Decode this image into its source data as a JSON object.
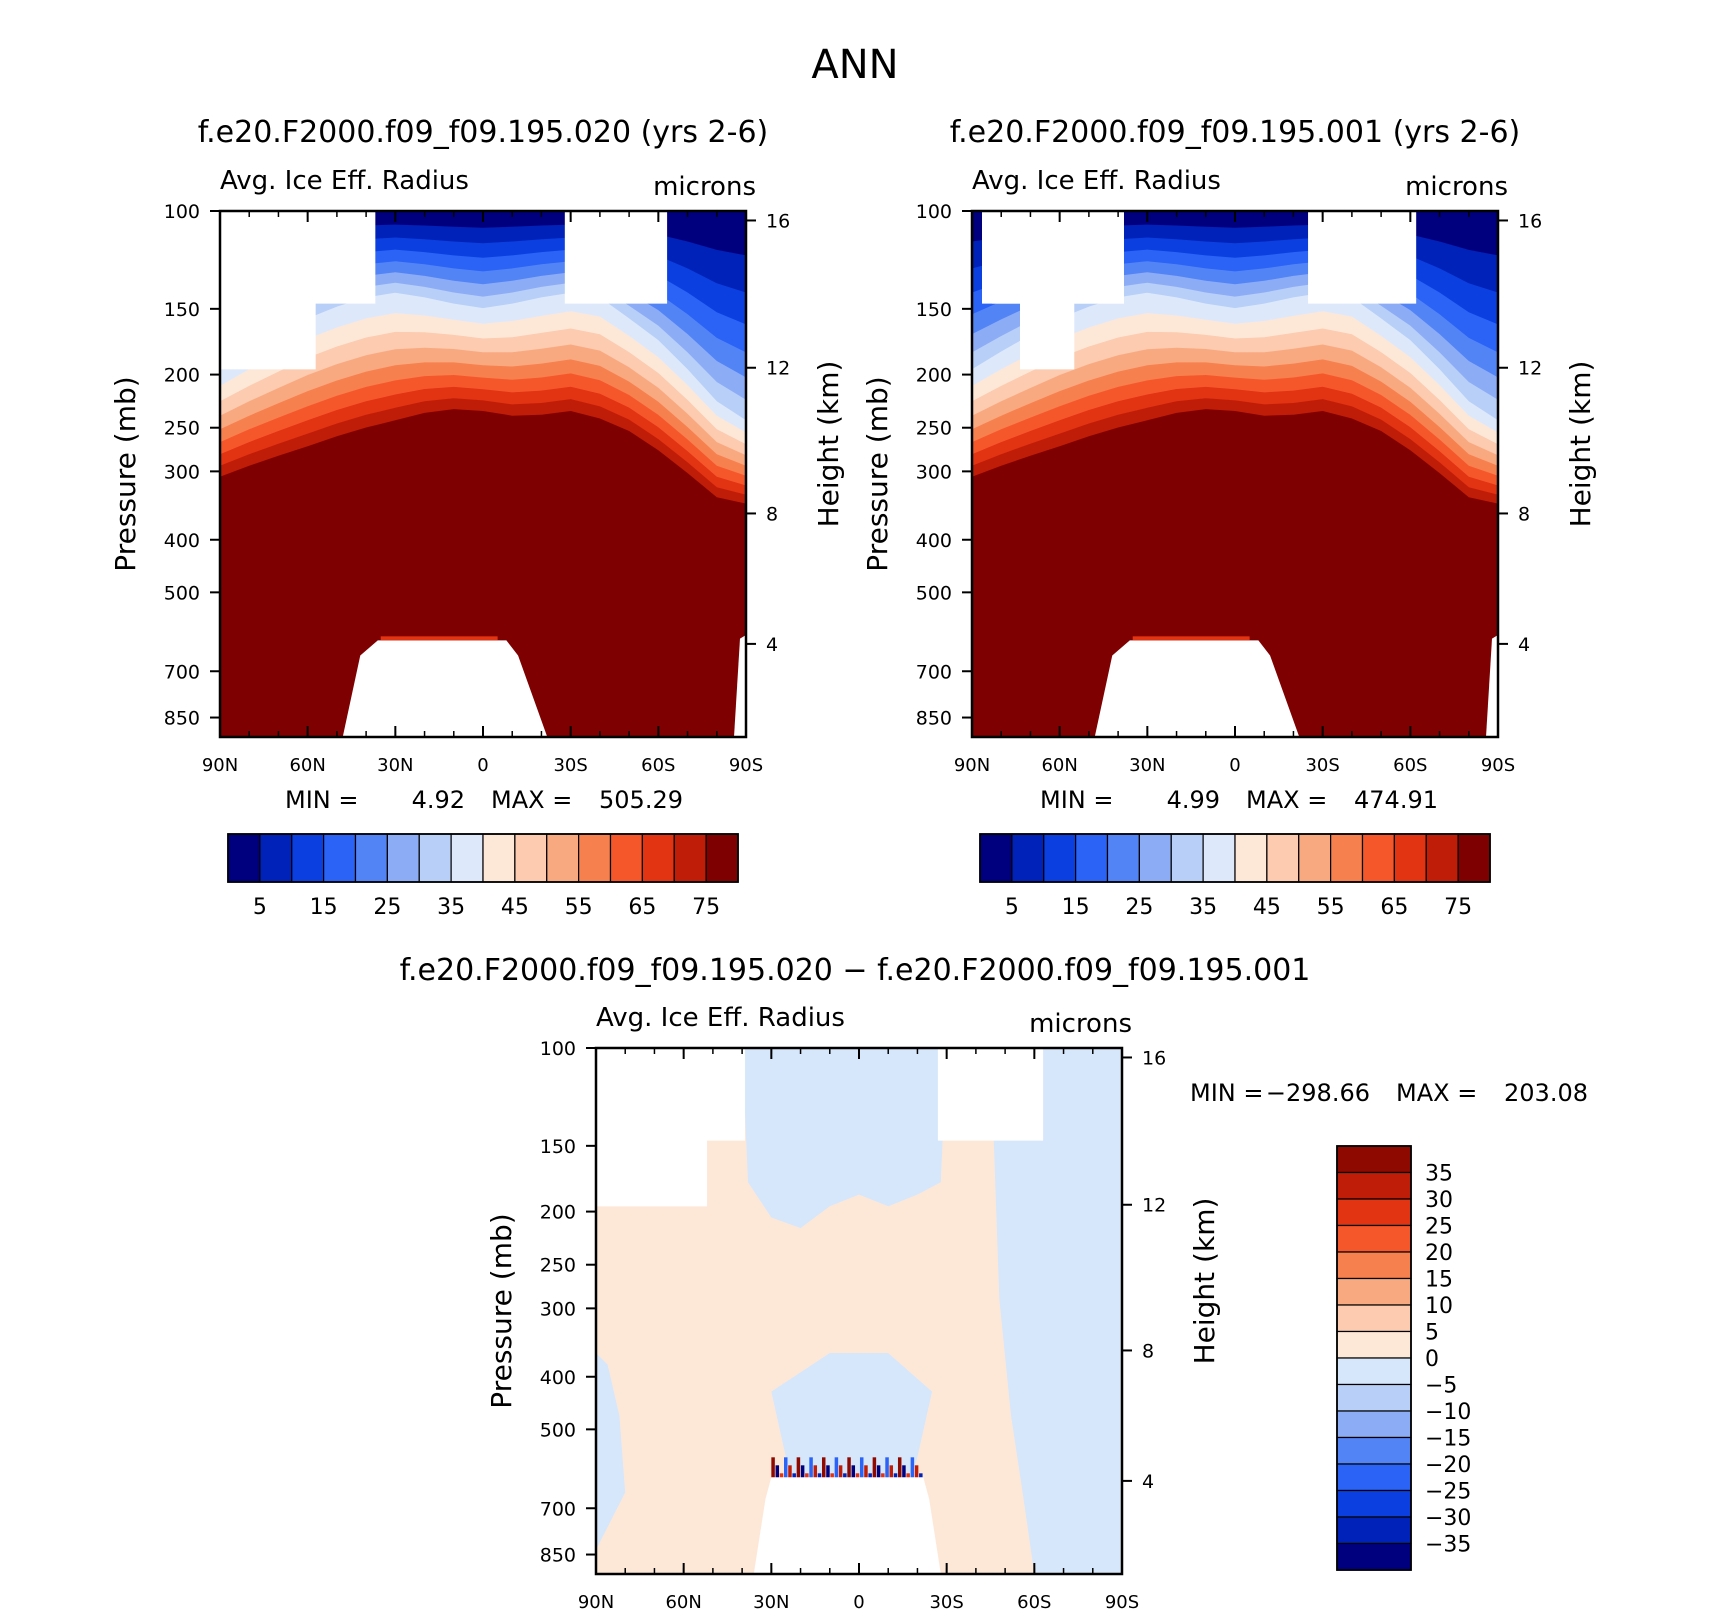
{
  "page": {
    "title": "ANN"
  },
  "colors": {
    "field_scale": [
      "#00007f",
      "#0022b8",
      "#0b3fe0",
      "#2a63f6",
      "#5284f6",
      "#8cacf6",
      "#b8cff8",
      "#dde9fb",
      "#fde8d8",
      "#fccbb0",
      "#f9a980",
      "#f7804f",
      "#f5572b",
      "#e23312",
      "#bf1d07",
      "#7f0000"
    ],
    "diff_scale": [
      "#00007f",
      "#0022b8",
      "#0b3fe0",
      "#2a63f6",
      "#5284f6",
      "#8cacf6",
      "#b8cff8",
      "#d6e7fb",
      "#fde8d8",
      "#fccbb0",
      "#f9a980",
      "#f7804f",
      "#f5572b",
      "#e23312",
      "#bf1d07",
      "#8e0a00"
    ]
  },
  "chart_data": [
    {
      "type": "heatmap",
      "title": "f.e20.F2000.f09_f09.195.020 (yrs 2-6)",
      "left_string": "Avg. Ice Eff. Radius",
      "right_string": "microns",
      "xlabel": "",
      "ylabel": "Pressure (mb)",
      "y2label": "Height (km)",
      "x_ticks": [
        "90N",
        "60N",
        "30N",
        "0",
        "30S",
        "60S",
        "90S"
      ],
      "y_ticks": [
        "100",
        "150",
        "200",
        "250",
        "300",
        "400",
        "500",
        "700",
        "850"
      ],
      "y2_ticks": [
        "16",
        "12",
        "8",
        "4"
      ],
      "xlim": [
        "90N",
        "90S"
      ],
      "ylim": [
        100,
        1000
      ],
      "y_scale": "log",
      "stats": {
        "min_label": "MIN =",
        "min": "4.92",
        "max_label": "MAX =",
        "max": "505.29"
      },
      "colorbar": {
        "orientation": "horizontal",
        "levels": [
          0,
          5,
          10,
          15,
          20,
          25,
          30,
          35,
          40,
          45,
          50,
          55,
          60,
          65,
          70,
          75
        ],
        "labels": [
          "5",
          "15",
          "25",
          "35",
          "45",
          "55",
          "65",
          "75"
        ]
      }
    },
    {
      "type": "heatmap",
      "title": "f.e20.F2000.f09_f09.195.001 (yrs 2-6)",
      "left_string": "Avg. Ice Eff. Radius",
      "right_string": "microns",
      "xlabel": "",
      "ylabel": "Pressure (mb)",
      "y2label": "Height (km)",
      "x_ticks": [
        "90N",
        "60N",
        "30N",
        "0",
        "30S",
        "60S",
        "90S"
      ],
      "y_ticks": [
        "100",
        "150",
        "200",
        "250",
        "300",
        "400",
        "500",
        "700",
        "850"
      ],
      "y2_ticks": [
        "16",
        "12",
        "8",
        "4"
      ],
      "xlim": [
        "90N",
        "90S"
      ],
      "ylim": [
        100,
        1000
      ],
      "y_scale": "log",
      "stats": {
        "min_label": "MIN =",
        "min": "4.99",
        "max_label": "MAX =",
        "max": "474.91"
      },
      "colorbar": {
        "orientation": "horizontal",
        "levels": [
          0,
          5,
          10,
          15,
          20,
          25,
          30,
          35,
          40,
          45,
          50,
          55,
          60,
          65,
          70,
          75
        ],
        "labels": [
          "5",
          "15",
          "25",
          "35",
          "45",
          "55",
          "65",
          "75"
        ]
      }
    },
    {
      "type": "heatmap",
      "title": "f.e20.F2000.f09_f09.195.020 − f.e20.F2000.f09_f09.195.001",
      "left_string": "Avg. Ice Eff. Radius",
      "right_string": "microns",
      "xlabel": "",
      "ylabel": "Pressure (mb)",
      "y2label": "Height (km)",
      "x_ticks": [
        "90N",
        "60N",
        "30N",
        "0",
        "30S",
        "60S",
        "90S"
      ],
      "y_ticks": [
        "100",
        "150",
        "200",
        "250",
        "300",
        "400",
        "500",
        "700",
        "850"
      ],
      "y2_ticks": [
        "16",
        "12",
        "8",
        "4"
      ],
      "xlim": [
        "90N",
        "90S"
      ],
      "ylim": [
        100,
        1000
      ],
      "y_scale": "log",
      "stats": {
        "min_label": "MIN =",
        "min": "−298.66",
        "max_label": "MAX =",
        "max": "203.08"
      },
      "colorbar": {
        "orientation": "vertical",
        "levels": [
          -35,
          -30,
          -25,
          -20,
          -15,
          -10,
          -5,
          0,
          5,
          10,
          15,
          20,
          25,
          30,
          35
        ],
        "labels": [
          "35",
          "30",
          "25",
          "20",
          "15",
          "10",
          "5",
          "0",
          "−5",
          "−10",
          "−15",
          "−20",
          "−25",
          "−30",
          "−35"
        ]
      }
    }
  ]
}
